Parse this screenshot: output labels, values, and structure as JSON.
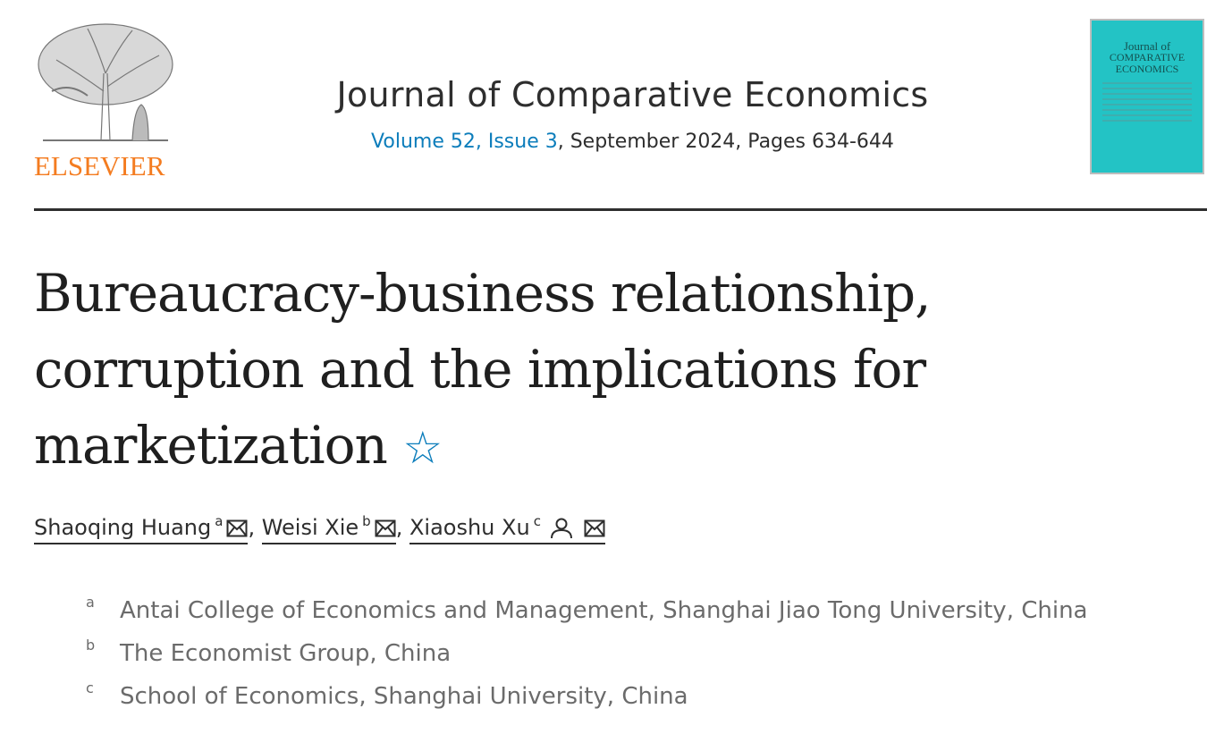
{
  "publisher": {
    "logo_text": "ELSEVIER",
    "color": "#f47c20"
  },
  "journal": {
    "title": "Journal of Comparative Economics",
    "volume_link": "Volume 52, Issue 3",
    "rest": ", September 2024, Pages 634-644",
    "cover_text_line1": "Journal of",
    "cover_text_line2": "COMPARATIVE ECONOMICS",
    "cover_color": "#23c3c5"
  },
  "article": {
    "title": "Bureaucracy-business relationship, corruption and the implications for marketization",
    "title_icon": "star-outline-icon",
    "authors": [
      {
        "name": "Shaoqing Huang",
        "sup": "a",
        "icons": [
          "envelope-icon"
        ]
      },
      {
        "name": "Weisi Xie",
        "sup": "b",
        "icons": [
          "envelope-icon"
        ]
      },
      {
        "name": "Xiaoshu Xu",
        "sup": "c",
        "icons": [
          "person-icon",
          "envelope-icon"
        ]
      }
    ],
    "separator": ",",
    "affiliations": [
      {
        "label": "a",
        "text": "Antai College of Economics and Management, Shanghai Jiao Tong University, China"
      },
      {
        "label": "b",
        "text": "The Economist Group, China"
      },
      {
        "label": "c",
        "text": "School of Economics, Shanghai University, China"
      }
    ]
  },
  "link_color": "#0c7dbb"
}
